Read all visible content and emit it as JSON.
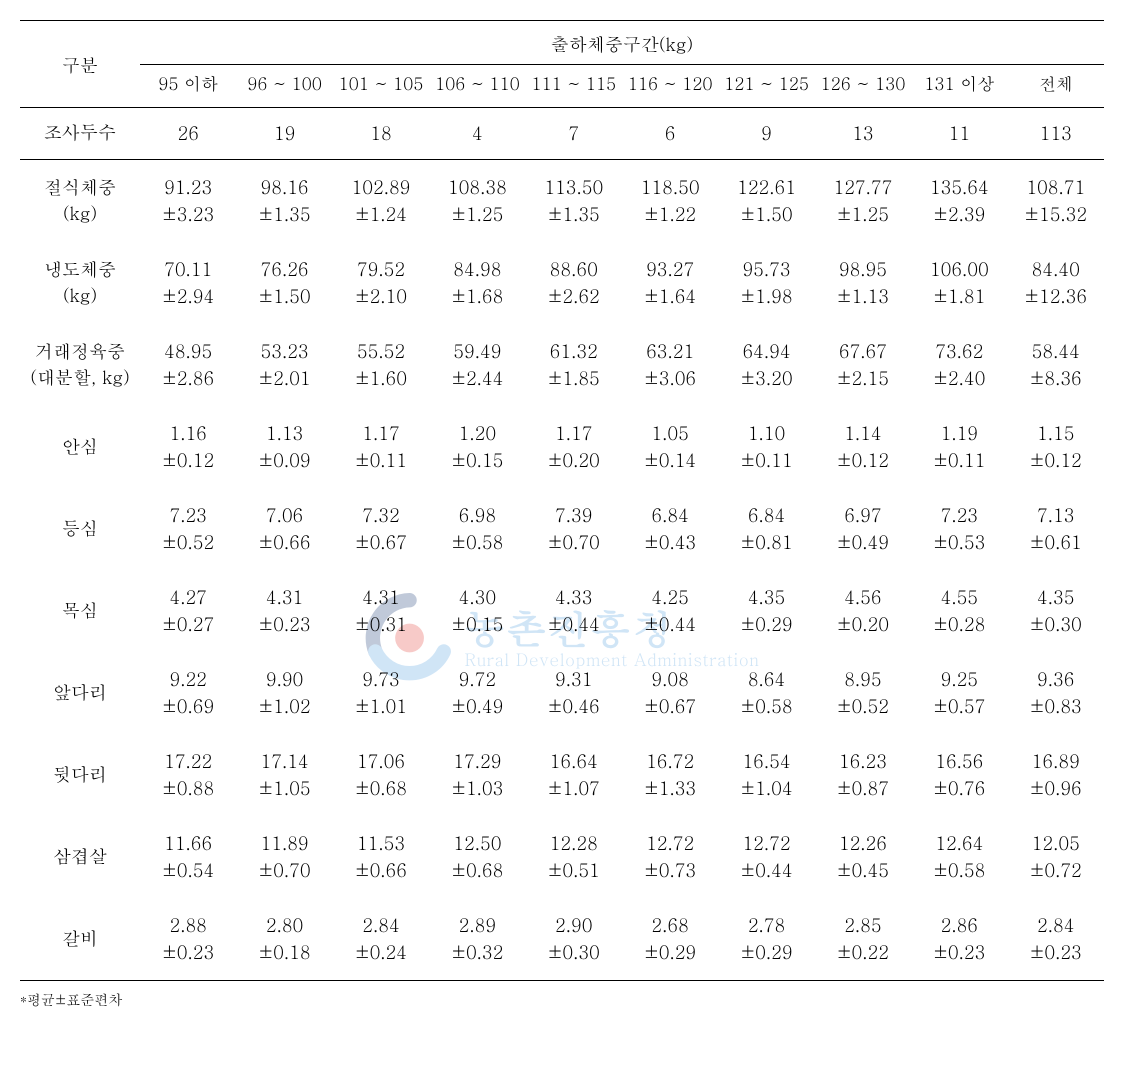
{
  "header": {
    "row_label_title": "구분",
    "group_title": "출하체중구간(kg)",
    "columns": [
      "95 이하",
      "96 ~ 100",
      "101 ~ 105",
      "106 ~ 110",
      "111 ~ 115",
      "116 ~ 120",
      "121 ~ 125",
      "126 ~ 130",
      "131 이상",
      "전체"
    ]
  },
  "count_row": {
    "label": "조사두수",
    "values": [
      "26",
      "19",
      "18",
      "4",
      "7",
      "6",
      "9",
      "13",
      "11",
      "113"
    ]
  },
  "rows": [
    {
      "label": "절식체중\n(kg)",
      "means": [
        "91.23",
        "98.16",
        "102.89",
        "108.38",
        "113.50",
        "118.50",
        "122.61",
        "127.77",
        "135.64",
        "108.71"
      ],
      "sds": [
        "±3.23",
        "±1.35",
        "±1.24",
        "±1.25",
        "±1.35",
        "±1.22",
        "±1.50",
        "±1.25",
        "±2.39",
        "±15.32"
      ]
    },
    {
      "label": "냉도체중\n(kg)",
      "means": [
        "70.11",
        "76.26",
        "79.52",
        "84.98",
        "88.60",
        "93.27",
        "95.73",
        "98.95",
        "106.00",
        "84.40"
      ],
      "sds": [
        "±2.94",
        "±1.50",
        "±2.10",
        "±1.68",
        "±2.62",
        "±1.64",
        "±1.98",
        "±1.13",
        "±1.81",
        "±12.36"
      ]
    },
    {
      "label": "거래정육중\n(대분할, kg)",
      "means": [
        "48.95",
        "53.23",
        "55.52",
        "59.49",
        "61.32",
        "63.21",
        "64.94",
        "67.67",
        "73.62",
        "58.44"
      ],
      "sds": [
        "±2.86",
        "±2.01",
        "±1.60",
        "±2.44",
        "±1.85",
        "±3.06",
        "±3.20",
        "±2.15",
        "±2.40",
        "±8.36"
      ]
    },
    {
      "label": "안심",
      "means": [
        "1.16",
        "1.13",
        "1.17",
        "1.20",
        "1.17",
        "1.05",
        "1.10",
        "1.14",
        "1.19",
        "1.15"
      ],
      "sds": [
        "±0.12",
        "±0.09",
        "±0.11",
        "±0.15",
        "±0.20",
        "±0.14",
        "±0.11",
        "±0.12",
        "±0.11",
        "±0.12"
      ]
    },
    {
      "label": "등심",
      "means": [
        "7.23",
        "7.06",
        "7.32",
        "6.98",
        "7.39",
        "6.84",
        "6.84",
        "6.97",
        "7.23",
        "7.13"
      ],
      "sds": [
        "±0.52",
        "±0.66",
        "±0.67",
        "±0.58",
        "±0.70",
        "±0.43",
        "±0.81",
        "±0.49",
        "±0.53",
        "±0.61"
      ]
    },
    {
      "label": "목심",
      "means": [
        "4.27",
        "4.31",
        "4.31",
        "4.30",
        "4.33",
        "4.25",
        "4.35",
        "4.56",
        "4.55",
        "4.35"
      ],
      "sds": [
        "±0.27",
        "±0.23",
        "±0.31",
        "±0.15",
        "±0.44",
        "±0.44",
        "±0.29",
        "±0.20",
        "±0.28",
        "±0.30"
      ]
    },
    {
      "label": "앞다리",
      "means": [
        "9.22",
        "9.90",
        "9.73",
        "9.72",
        "9.31",
        "9.08",
        "8.64",
        "8.95",
        "9.25",
        "9.36"
      ],
      "sds": [
        "±0.69",
        "±1.02",
        "±1.01",
        "±0.49",
        "±0.46",
        "±0.67",
        "±0.58",
        "±0.52",
        "±0.57",
        "±0.83"
      ]
    },
    {
      "label": "뒷다리",
      "means": [
        "17.22",
        "17.14",
        "17.06",
        "17.29",
        "16.64",
        "16.72",
        "16.54",
        "16.23",
        "16.56",
        "16.89"
      ],
      "sds": [
        "±0.88",
        "±1.05",
        "±0.68",
        "±1.03",
        "±1.07",
        "±1.33",
        "±1.04",
        "±0.87",
        "±0.76",
        "±0.96"
      ]
    },
    {
      "label": "삼겹살",
      "means": [
        "11.66",
        "11.89",
        "11.53",
        "12.50",
        "12.28",
        "12.72",
        "12.72",
        "12.26",
        "12.64",
        "12.05"
      ],
      "sds": [
        "±0.54",
        "±0.70",
        "±0.66",
        "±0.68",
        "±0.51",
        "±0.73",
        "±0.44",
        "±0.45",
        "±0.58",
        "±0.72"
      ]
    },
    {
      "label": "갈비",
      "means": [
        "2.88",
        "2.80",
        "2.84",
        "2.89",
        "2.90",
        "2.68",
        "2.78",
        "2.85",
        "2.86",
        "2.84"
      ],
      "sds": [
        "±0.23",
        "±0.18",
        "±0.24",
        "±0.32",
        "±0.30",
        "±0.29",
        "±0.29",
        "±0.22",
        "±0.23",
        "±0.23"
      ]
    }
  ],
  "footnote": "*평균±표준편차",
  "watermark": {
    "ko": "농촌진흥청",
    "en": "Rural Development Administration"
  },
  "style": {
    "font_size_body": 18,
    "font_size_footnote": 14,
    "border_color": "#000000",
    "text_color": "#000000",
    "bg_color": "#ffffff",
    "watermark_opacity": 0.28,
    "watermark_blue": "#5aa3e0",
    "watermark_red": "#e6463c",
    "watermark_navy": "#1f3f7a"
  }
}
